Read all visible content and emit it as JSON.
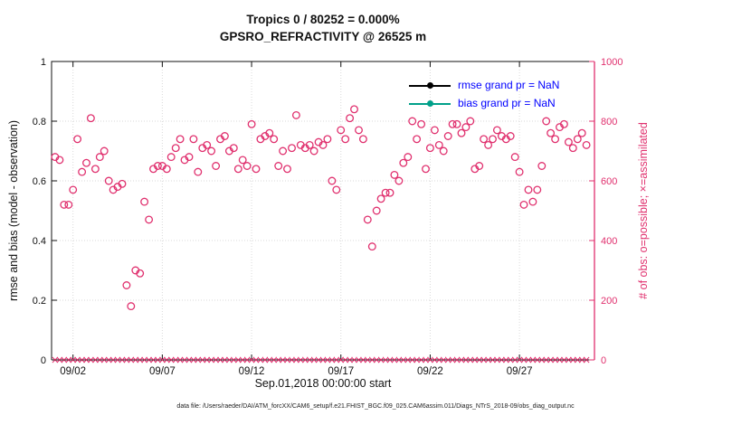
{
  "title": {
    "line1": "Tropics 0 / 80252 = 0.000%",
    "line2": "GPSRO_REFRACTIVITY @ 26525 m"
  },
  "axes": {
    "left_label": "rmse and bias (model - observation)",
    "right_label": "# of obs: o=possible; ×=assimilated",
    "x_label": "Sep.01,2018 00:00:00 start",
    "left_ticks": [
      {
        "label": "0",
        "v": 0
      },
      {
        "label": "0.2",
        "v": 0.2
      },
      {
        "label": "0.4",
        "v": 0.4
      },
      {
        "label": "0.6",
        "v": 0.6
      },
      {
        "label": "0.8",
        "v": 0.8
      },
      {
        "label": "1",
        "v": 1
      }
    ],
    "right_ticks": [
      {
        "label": "0",
        "v": 0
      },
      {
        "label": "200",
        "v": 200
      },
      {
        "label": "400",
        "v": 400
      },
      {
        "label": "600",
        "v": 600
      },
      {
        "label": "800",
        "v": 800
      },
      {
        "label": "1000",
        "v": 1000
      }
    ],
    "x_ticks": [
      {
        "label": "09/02",
        "day": 2
      },
      {
        "label": "09/07",
        "day": 7
      },
      {
        "label": "09/12",
        "day": 12
      },
      {
        "label": "09/17",
        "day": 17
      },
      {
        "label": "09/22",
        "day": 22
      },
      {
        "label": "09/27",
        "day": 27
      }
    ]
  },
  "legend": [
    {
      "label": "rmse grand pr = NaN",
      "color": "#000000",
      "text_color": "#0000ff"
    },
    {
      "label": "bias grand pr = NaN",
      "color": "#00a089",
      "text_color": "#0000ff"
    }
  ],
  "footer": "data file: /Users/raeder/DAI/ATM_forcXX/CAM6_setup/f.e21.FHIST_BGC.f09_025.CAM6assim.011/Diags_NTrS_2018-09/obs_diag_output.nc",
  "colors": {
    "obs_pink": "#e0306e",
    "grid_gray": "#d9d9d9",
    "axis_black": "#111111",
    "legend_text_blue": "#0000ff",
    "bias_teal": "#00a089"
  },
  "chart_data": {
    "type": "scatter",
    "title": "Tropics 0 / 80252 = 0.000% — GPSRO_REFRACTIVITY @ 26525 m",
    "xlabel": "Sep.01,2018 00:00:00 start",
    "ylabel_left": "rmse and bias (model - observation)",
    "ylabel_right": "# of obs: o=possible; ×=assimilated",
    "left_ylim": [
      0,
      1
    ],
    "right_ylim": [
      0,
      1000
    ],
    "x_domain_days": [
      0.8,
      31.2
    ],
    "x_unit": "days since Sep 01 2018 00:00 UTC",
    "grid": true,
    "legend_position": "top-right-inside",
    "x_start": 1.0,
    "x_step": 0.25,
    "series": [
      {
        "name": "possible obs count",
        "marker": "o",
        "color": "#e0306e",
        "axis": "right",
        "values": [
          680,
          670,
          520,
          520,
          570,
          740,
          630,
          660,
          810,
          640,
          680,
          700,
          600,
          570,
          580,
          590,
          250,
          180,
          300,
          290,
          530,
          470,
          640,
          650,
          650,
          640,
          680,
          710,
          740,
          670,
          680,
          740,
          630,
          710,
          720,
          700,
          650,
          740,
          750,
          700,
          710,
          640,
          670,
          650,
          790,
          640,
          740,
          750,
          760,
          740,
          650,
          700,
          640,
          710,
          820,
          720,
          710,
          720,
          700,
          730,
          720,
          740,
          600,
          570,
          770,
          740,
          810,
          840,
          770,
          740,
          470,
          380,
          500,
          540,
          560,
          560,
          620,
          600,
          660,
          680,
          800,
          740,
          790,
          640,
          710,
          770,
          720,
          700,
          750,
          790,
          790,
          760,
          780,
          800,
          640,
          650,
          740,
          720,
          740,
          770,
          750,
          740,
          750,
          680,
          630,
          520,
          570,
          530,
          570,
          650,
          800,
          760,
          740,
          780,
          790,
          730,
          710,
          740,
          760,
          720
        ]
      },
      {
        "name": "assimilated obs count",
        "marker": "x",
        "color": "#e0306e",
        "axis": "right",
        "value_constant": 0,
        "n_points": 120
      },
      {
        "name": "rmse",
        "marker": "o-line",
        "color": "#000000",
        "axis": "left",
        "grand_value": "NaN",
        "values": []
      },
      {
        "name": "bias",
        "marker": "o-line",
        "color": "#00a089",
        "axis": "left",
        "grand_value": "NaN",
        "values": []
      }
    ]
  }
}
